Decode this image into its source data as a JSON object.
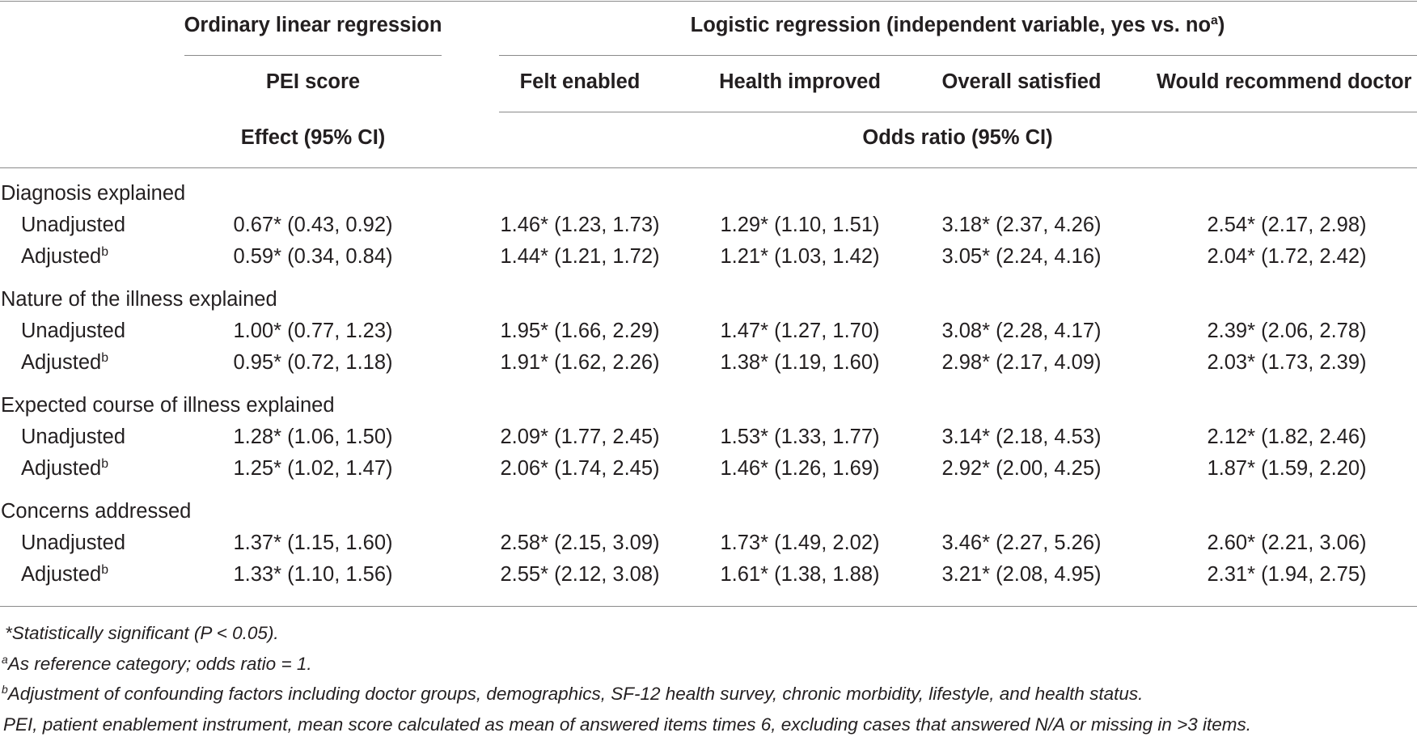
{
  "header": {
    "ordinary_group": "Ordinary linear regression",
    "logistic_group_prefix": "Logistic regression (independent variable, yes vs. no",
    "logistic_group_sup": "a",
    "logistic_group_suffix": ")",
    "columns": [
      "PEI score",
      "Felt enabled",
      "Health improved",
      "Overall satisfied",
      "Would recommend doctor"
    ],
    "effect_label": "Effect (95% CI)",
    "odds_label": "Odds ratio (95% CI)"
  },
  "groups": [
    {
      "label": "Diagnosis explained",
      "rows": [
        {
          "label": "Unadjusted",
          "sup": "",
          "values": [
            "0.67* (0.43, 0.92)",
            "1.46* (1.23, 1.73)",
            "1.29* (1.10, 1.51)",
            "3.18* (2.37, 4.26)",
            "2.54* (2.17, 2.98)"
          ]
        },
        {
          "label": "Adjusted",
          "sup": "b",
          "values": [
            "0.59* (0.34, 0.84)",
            "1.44* (1.21, 1.72)",
            "1.21* (1.03, 1.42)",
            "3.05* (2.24, 4.16)",
            "2.04* (1.72, 2.42)"
          ]
        }
      ]
    },
    {
      "label": "Nature of the illness explained",
      "rows": [
        {
          "label": "Unadjusted",
          "sup": "",
          "values": [
            "1.00* (0.77, 1.23)",
            "1.95* (1.66, 2.29)",
            "1.47* (1.27, 1.70)",
            "3.08* (2.28, 4.17)",
            "2.39* (2.06, 2.78)"
          ]
        },
        {
          "label": "Adjusted",
          "sup": "b",
          "values": [
            "0.95* (0.72, 1.18)",
            "1.91* (1.62, 2.26)",
            "1.38* (1.19, 1.60)",
            "2.98* (2.17, 4.09)",
            "2.03* (1.73, 2.39)"
          ]
        }
      ]
    },
    {
      "label": "Expected course of illness explained",
      "rows": [
        {
          "label": "Unadjusted",
          "sup": "",
          "values": [
            "1.28* (1.06, 1.50)",
            "2.09* (1.77, 2.45)",
            "1.53* (1.33, 1.77)",
            "3.14* (2.18, 4.53)",
            "2.12* (1.82, 2.46)"
          ]
        },
        {
          "label": "Adjusted",
          "sup": "b",
          "values": [
            "1.25* (1.02, 1.47)",
            "2.06* (1.74, 2.45)",
            "1.46* (1.26, 1.69)",
            "2.92* (2.00, 4.25)",
            "1.87* (1.59, 2.20)"
          ]
        }
      ]
    },
    {
      "label": "Concerns addressed",
      "rows": [
        {
          "label": "Unadjusted",
          "sup": "",
          "values": [
            "1.37* (1.15, 1.60)",
            "2.58* (2.15, 3.09)",
            "1.73* (1.49, 2.02)",
            "3.46* (2.27, 5.26)",
            "2.60* (2.21, 3.06)"
          ]
        },
        {
          "label": "Adjusted",
          "sup": "b",
          "values": [
            "1.33* (1.10, 1.56)",
            "2.55* (2.12, 3.08)",
            "1.61* (1.38, 1.88)",
            "3.21* (2.08, 4.95)",
            "2.31* (1.94, 2.75)"
          ]
        }
      ]
    }
  ],
  "footnotes": {
    "significance": "*Statistically significant (P < 0.05).",
    "a_mark": "a",
    "a_text": "As reference category; odds ratio = 1.",
    "b_mark": "b",
    "b_text": "Adjustment of confounding factors including doctor groups, demographics, SF-12 health survey, chronic morbidity, lifestyle, and health status.",
    "pei": "PEI, patient enablement instrument, mean score calculated as mean of answered items times 6, excluding cases that answered N/A or missing in >3 items."
  }
}
